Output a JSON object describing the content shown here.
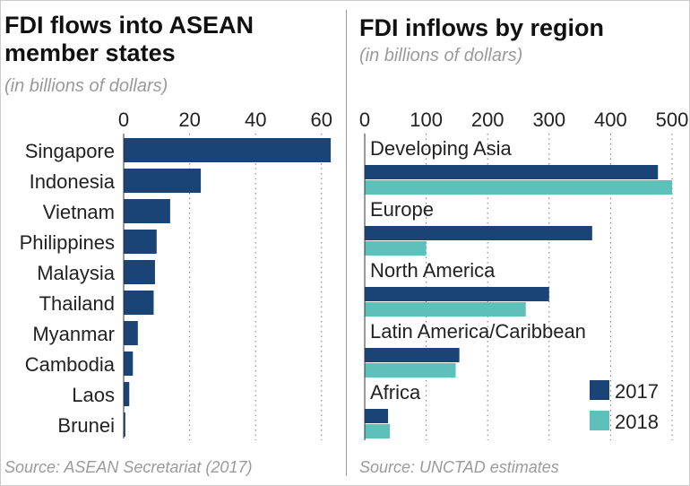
{
  "colors": {
    "2017": "#1b4476",
    "2018": "#5fc0bb"
  },
  "chart_data": [
    {
      "type": "bar",
      "orientation": "horizontal",
      "title": "FDI flows into ASEAN member states",
      "subtitle": "(in billions of dollars)",
      "source": "Source: ASEAN Secretariat (2017)",
      "categories": [
        "Singapore",
        "Indonesia",
        "Vietnam",
        "Philippines",
        "Malaysia",
        "Thailand",
        "Myanmar",
        "Cambodia",
        "Laos",
        "Brunei"
      ],
      "values": [
        62.8,
        23.4,
        14.1,
        10.0,
        9.5,
        9.1,
        4.3,
        2.8,
        1.7,
        0.5
      ],
      "xlim": [
        0,
        65
      ],
      "ticks": [
        "0",
        "20",
        "40",
        "60"
      ],
      "tick_values": [
        0,
        20,
        40,
        60
      ],
      "grid": true
    },
    {
      "type": "bar",
      "orientation": "horizontal",
      "title": "FDI inflows by region",
      "subtitle": "(in billions of dollars)",
      "source": "Source: UNCTAD estimates",
      "categories": [
        "Developing Asia",
        "Europe",
        "North America",
        "Latin America/Caribbean",
        "Africa"
      ],
      "series": [
        {
          "name": "2017",
          "values": [
            477,
            370,
            300,
            154,
            38
          ]
        },
        {
          "name": "2018",
          "values": [
            500,
            100,
            262,
            148,
            41
          ]
        }
      ],
      "xlim": [
        0,
        500
      ],
      "ticks": [
        "0",
        "100",
        "200",
        "300",
        "400",
        "500"
      ],
      "tick_values": [
        0,
        100,
        200,
        300,
        400,
        500
      ],
      "grid": true,
      "legend": "bottom-right"
    }
  ]
}
